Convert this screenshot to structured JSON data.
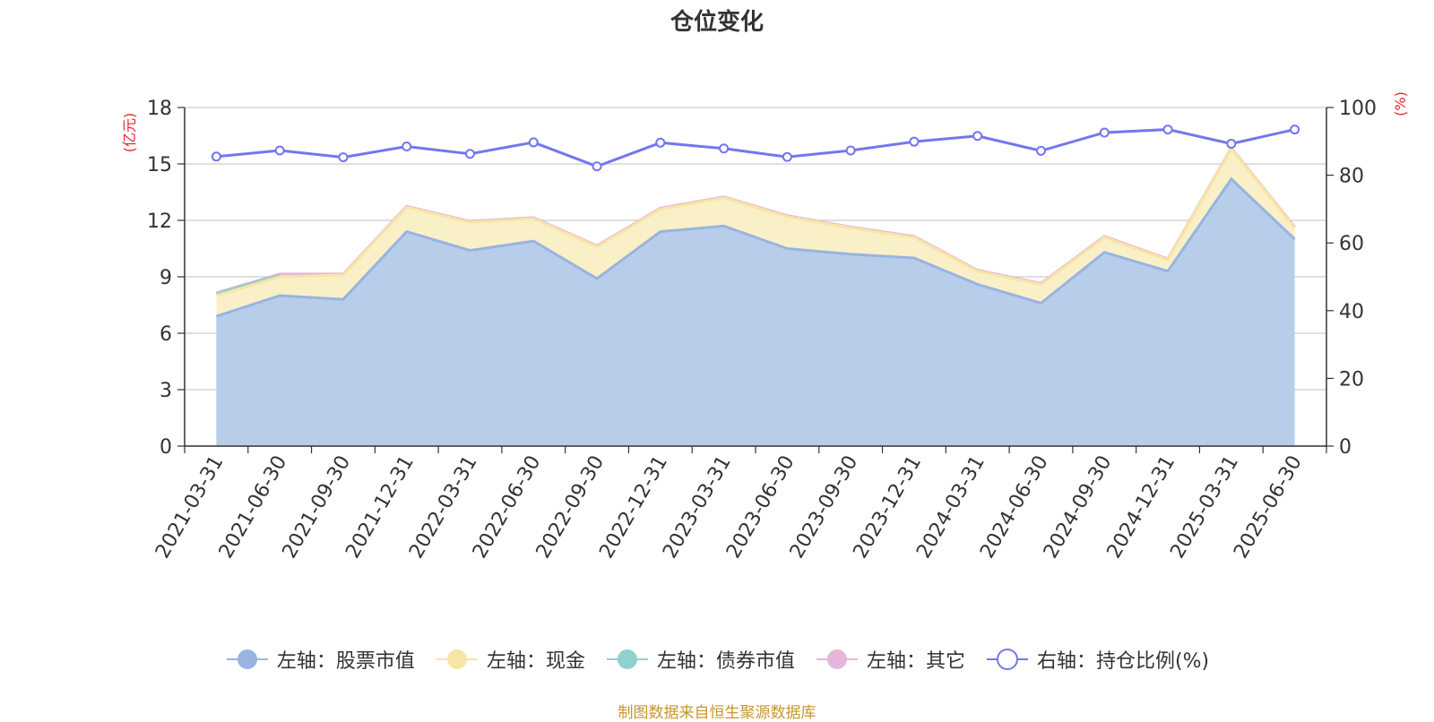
{
  "title": "仓位变化",
  "source": "制图数据来自恒生聚源数据库",
  "colors": {
    "stock": "#98b4e0",
    "stock_fill": "#b8cdea",
    "cash": "#f8e4a4",
    "cash_fill": "#faefc4",
    "bond": "#8fd1d0",
    "other": "#e6b5da",
    "ratio": "#7476ee",
    "axis_unit": "#e8262b",
    "grid": "#cccccc",
    "text": "#333333"
  },
  "chart_data": {
    "type": "area",
    "x": [
      "2021-03-31",
      "2021-06-30",
      "2021-09-30",
      "2021-12-31",
      "2022-03-31",
      "2022-06-30",
      "2022-09-30",
      "2022-12-31",
      "2023-03-31",
      "2023-06-30",
      "2023-09-30",
      "2023-12-31",
      "2024-03-31",
      "2024-06-30",
      "2024-09-30",
      "2024-12-31",
      "2025-03-31",
      "2025-06-30"
    ],
    "left_axis": {
      "unit": "(亿元)",
      "ticks": [
        "0",
        "3",
        "6",
        "9",
        "12",
        "15",
        "18"
      ],
      "range": [
        0,
        18
      ]
    },
    "right_axis": {
      "unit": "(%)",
      "ticks": [
        "0",
        "20",
        "40",
        "60",
        "80",
        "100"
      ],
      "range": [
        0,
        100
      ]
    },
    "stacked_totals_note": "series values are stacked on the left axis",
    "series": [
      {
        "name": "左轴：股票市值",
        "key": "stock",
        "axis": "left",
        "stacked": true,
        "values": [
          6.9,
          8.0,
          7.8,
          11.4,
          10.4,
          10.9,
          8.9,
          11.4,
          11.7,
          10.5,
          10.2,
          10.0,
          8.6,
          7.6,
          10.3,
          9.3,
          14.2,
          11.0
        ]
      },
      {
        "name": "左轴：现金",
        "key": "cash",
        "axis": "left",
        "stacked": true,
        "values": [
          1.1,
          1.0,
          1.3,
          1.3,
          1.5,
          1.2,
          1.7,
          1.2,
          1.5,
          1.7,
          1.4,
          1.1,
          0.7,
          1.0,
          0.8,
          0.6,
          1.6,
          0.6
        ]
      },
      {
        "name": "左轴：债券市值",
        "key": "bond",
        "axis": "left",
        "stacked": true,
        "values": [
          0.1,
          0.1,
          null,
          null,
          null,
          null,
          null,
          null,
          null,
          null,
          null,
          null,
          null,
          null,
          null,
          null,
          null,
          null
        ]
      },
      {
        "name": "左轴：其它",
        "key": "other",
        "axis": "left",
        "stacked": true,
        "values": [
          0.05,
          0.05,
          0.05,
          0.05,
          0.05,
          0.05,
          0.05,
          0.05,
          0.05,
          0.05,
          0.05,
          0.05,
          0.05,
          0.05,
          0.05,
          0.05,
          0.05,
          0.05
        ]
      },
      {
        "name": "右轴：持仓比例(%)",
        "key": "ratio",
        "axis": "right",
        "stacked": false,
        "values": [
          85.5,
          87.3,
          85.3,
          88.5,
          86.3,
          89.7,
          82.6,
          89.6,
          87.9,
          85.4,
          87.3,
          89.9,
          91.6,
          87.2,
          92.6,
          93.5,
          89.3,
          93.5
        ]
      }
    ],
    "grid": true,
    "legend_position": "bottom"
  }
}
